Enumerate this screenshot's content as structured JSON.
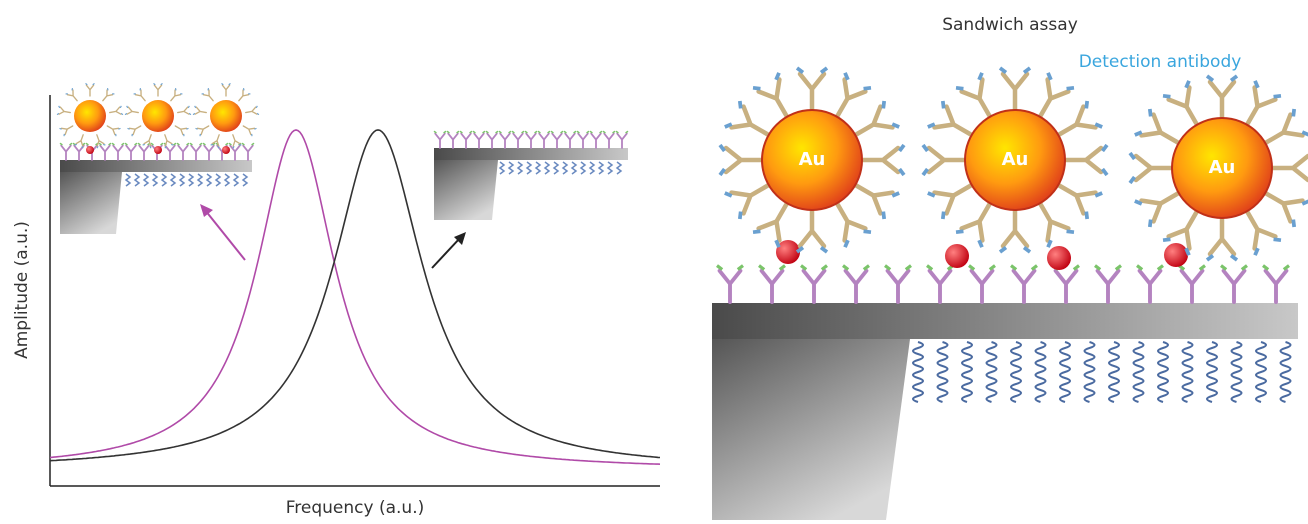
{
  "left_panel": {
    "y_axis_label": "Amplitude (a.u.)",
    "x_axis_label": "Frequency (a.u.)"
  },
  "right_panel": {
    "title": "Sandwich assay",
    "annotation": "Detection antibody",
    "particles": [
      {
        "label": "Au"
      },
      {
        "label": "Au"
      },
      {
        "label": "Au"
      }
    ]
  }
}
